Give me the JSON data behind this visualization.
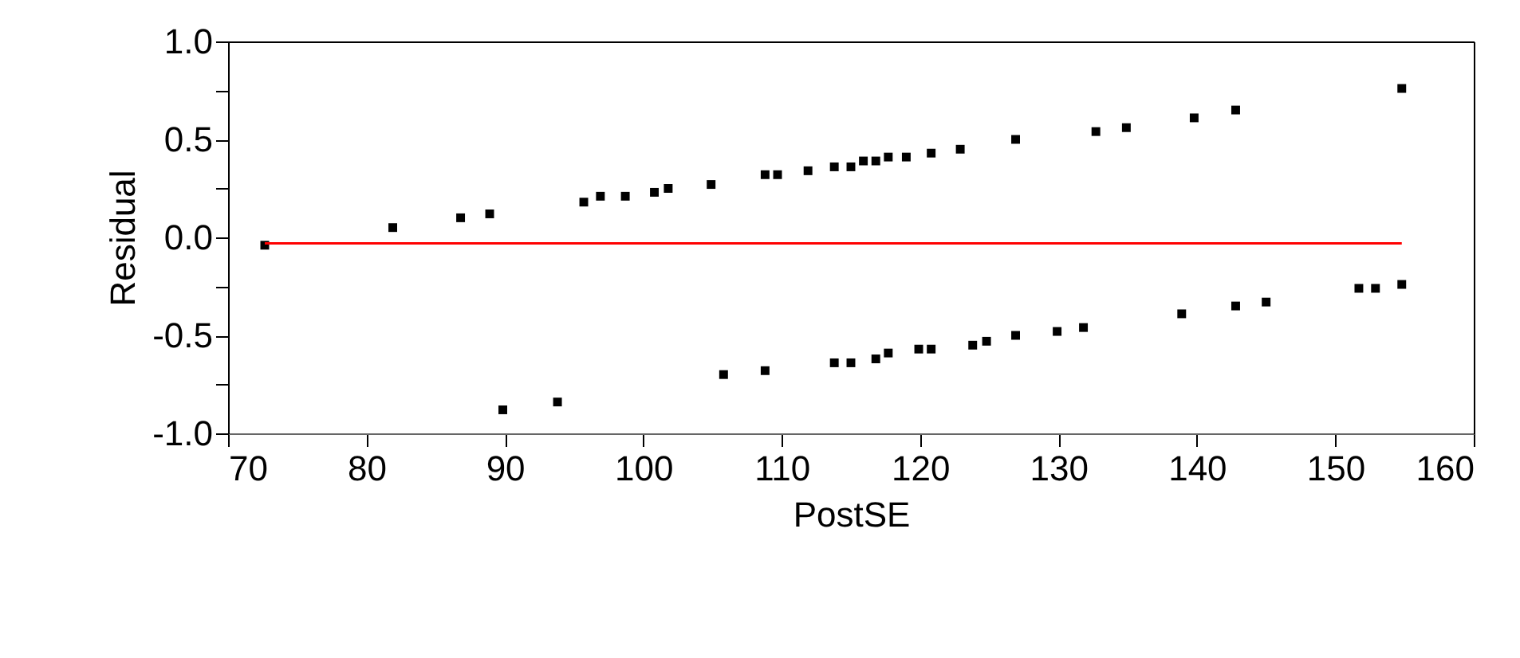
{
  "chart_data": {
    "type": "scatter",
    "xlabel": "PostSE",
    "ylabel": "Residual",
    "marker": "square",
    "grid": false,
    "xlim": [
      70,
      160
    ],
    "xticks": [
      70,
      80,
      90,
      100,
      110,
      120,
      130,
      140,
      150,
      160
    ],
    "ylim": [
      -1.0,
      1.0
    ],
    "yticks": [
      {
        "value": -1,
        "label": "-1.0"
      },
      {
        "value": -0.75,
        "label": null
      },
      {
        "value": -0.5,
        "label": "-0.5"
      },
      {
        "value": -0.25,
        "label": null
      },
      {
        "value": 0,
        "label": "0.0"
      },
      {
        "value": 0.25,
        "label": null
      },
      {
        "value": 0.5,
        "label": "0.5"
      },
      {
        "value": 0.75,
        "label": null
      },
      {
        "value": 1,
        "label": "1.0"
      }
    ],
    "series": [
      {
        "color": "#000000",
        "x": [
          72.65,
          81.9,
          86.8,
          88.9,
          95.7,
          96.9,
          98.7,
          100.8,
          101.8,
          104.9,
          108.8,
          109.7,
          111.9,
          113.8,
          115.0,
          115.9,
          116.8,
          117.7,
          119.0,
          120.8,
          122.9,
          126.9,
          132.7,
          134.9,
          139.8,
          142.8,
          154.8,
          89.85,
          93.8,
          105.8,
          108.8,
          113.8,
          115.0,
          116.8,
          117.7,
          119.9,
          120.8,
          123.8,
          124.8,
          126.9,
          129.9,
          131.8,
          138.9,
          142.8,
          145.0,
          151.7,
          152.9,
          154.8
        ],
        "values": [
          -0.04,
          0.05,
          0.1,
          0.12,
          0.18,
          0.21,
          0.21,
          0.23,
          0.25,
          0.27,
          0.32,
          0.32,
          0.34,
          0.36,
          0.36,
          0.39,
          0.39,
          0.41,
          0.41,
          0.43,
          0.45,
          0.5,
          0.54,
          0.56,
          0.61,
          0.65,
          0.76,
          -0.88,
          -0.84,
          -0.7,
          -0.68,
          -0.64,
          -0.64,
          -0.62,
          -0.59,
          -0.57,
          -0.57,
          -0.55,
          -0.53,
          -0.5,
          -0.48,
          -0.46,
          -0.39,
          -0.35,
          -0.33,
          -0.26,
          -0.26,
          -0.24
        ]
      },
      {
        "type": "line",
        "marker": "none",
        "line_style": "solid",
        "color": "#ff0000",
        "x": [
          72.65,
          154.8
        ],
        "values": [
          -0.03,
          -0.03
        ]
      }
    ]
  }
}
